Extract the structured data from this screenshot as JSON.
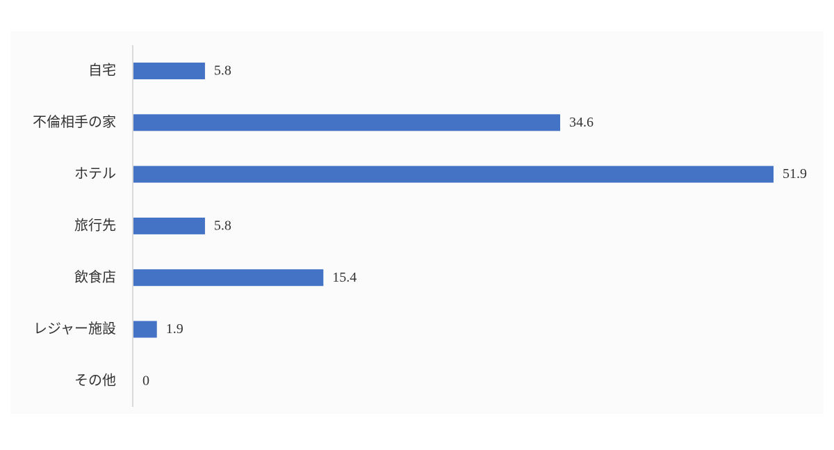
{
  "chart_data": {
    "type": "bar",
    "orientation": "horizontal",
    "categories": [
      "自宅",
      "不倫相手の家",
      "ホテル",
      "旅行先",
      "飲食店",
      "レジャー施設",
      "その他"
    ],
    "values": [
      5.8,
      34.6,
      51.9,
      5.8,
      15.4,
      1.9,
      0
    ],
    "color": "#4472c4"
  }
}
